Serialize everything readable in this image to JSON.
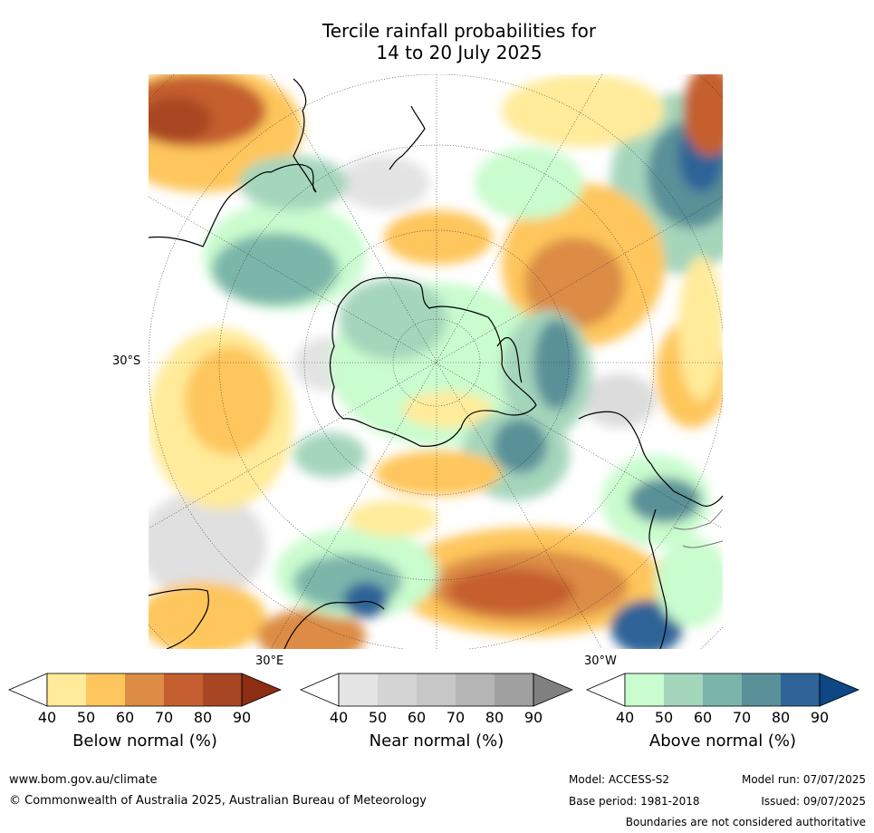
{
  "title_line1": "Tercile rainfall probabilities for",
  "title_line2": "14 to 20 July 2025",
  "map": {
    "lat_label": "30°S",
    "lon_label_east": "30°E",
    "lon_label_west": "30°W"
  },
  "colorbars": [
    {
      "label": "Below normal (%)",
      "ticks": [
        "40",
        "50",
        "60",
        "70",
        "80",
        "90"
      ],
      "colors": [
        "#ffffff",
        "#ffeb9a",
        "#fec65c",
        "#dc8c44",
        "#c55f2f",
        "#a84624",
        "#8c2d14"
      ]
    },
    {
      "label": "Near normal (%)",
      "ticks": [
        "40",
        "50",
        "60",
        "70",
        "80",
        "90"
      ],
      "colors": [
        "#ffffff",
        "#e5e5e5",
        "#d4d4d4",
        "#c7c7c7",
        "#b5b5b5",
        "#a0a0a0",
        "#808080"
      ]
    },
    {
      "label": "Above normal (%)",
      "ticks": [
        "40",
        "50",
        "60",
        "70",
        "80",
        "90"
      ],
      "colors": [
        "#ffffff",
        "#c9fcce",
        "#a4d6bc",
        "#7bb5aa",
        "#5a9098",
        "#2e6398",
        "#0d4785"
      ]
    }
  ],
  "footer": {
    "website": "www.bom.gov.au/climate",
    "copyright": "© Commonwealth of Australia 2025, Australian Bureau of Meteorology",
    "model": "Model: ACCESS-S2",
    "base_period": "Base period: 1981-2018",
    "model_run": "Model run: 07/07/2025",
    "issued": "Issued: 09/07/2025",
    "disclaimer": "Boundaries are not considered authoritative"
  }
}
